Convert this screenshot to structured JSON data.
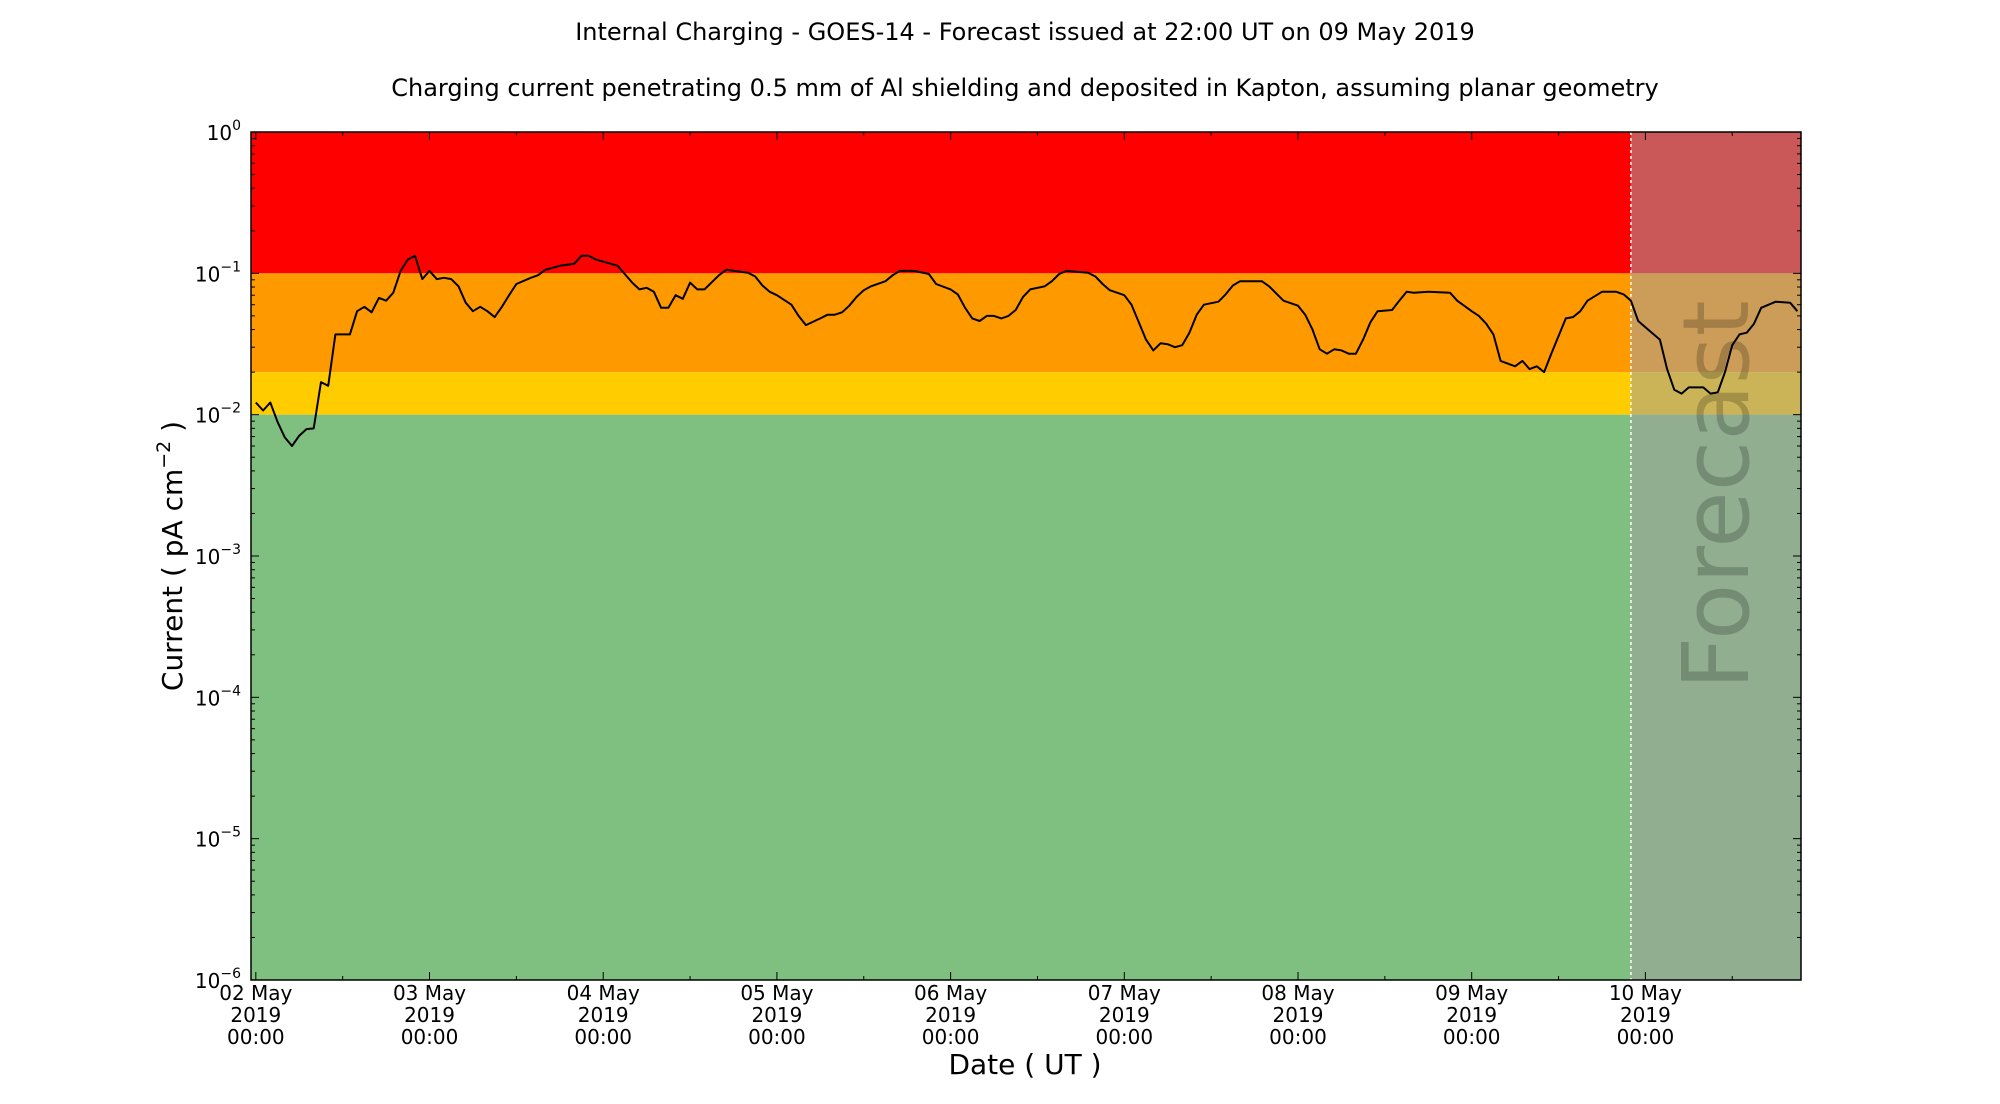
{
  "chart_data": {
    "type": "line",
    "title": "Internal Charging - GOES-14 - Forecast issued at 22:00 UT on 09 May 2019",
    "subtitle": "Charging current penetrating 0.5 mm of Al shielding and deposited in Kapton, assuming planar geometry",
    "xlabel": "Date ( UT )",
    "ylabel": {
      "text": "Current ( pA cm",
      "exp": "−2",
      "close": " )"
    },
    "y_scale": "log",
    "ylim": [
      1e-06,
      1
    ],
    "xlim": [
      "2019-05-01T23:20",
      "2019-05-10T21:30"
    ],
    "grid": false,
    "y_ticks": [
      {
        "value": 1,
        "base": "10",
        "exp": "0"
      },
      {
        "value": 0.1,
        "base": "10",
        "exp": "−1"
      },
      {
        "value": 0.01,
        "base": "10",
        "exp": "−2"
      },
      {
        "value": 0.001,
        "base": "10",
        "exp": "−3"
      },
      {
        "value": 0.0001,
        "base": "10",
        "exp": "−4"
      },
      {
        "value": 1e-05,
        "base": "10",
        "exp": "−5"
      },
      {
        "value": 1e-06,
        "base": "10",
        "exp": "−6"
      }
    ],
    "x_ticks": [
      {
        "date": "2019-05-02T00:00",
        "lines": [
          "02 May",
          "2019",
          "00:00"
        ]
      },
      {
        "date": "2019-05-03T00:00",
        "lines": [
          "03 May",
          "2019",
          "00:00"
        ]
      },
      {
        "date": "2019-05-04T00:00",
        "lines": [
          "04 May",
          "2019",
          "00:00"
        ]
      },
      {
        "date": "2019-05-05T00:00",
        "lines": [
          "05 May",
          "2019",
          "00:00"
        ]
      },
      {
        "date": "2019-05-06T00:00",
        "lines": [
          "06 May",
          "2019",
          "00:00"
        ]
      },
      {
        "date": "2019-05-07T00:00",
        "lines": [
          "07 May",
          "2019",
          "00:00"
        ]
      },
      {
        "date": "2019-05-08T00:00",
        "lines": [
          "08 May",
          "2019",
          "00:00"
        ]
      },
      {
        "date": "2019-05-09T00:00",
        "lines": [
          "09 May",
          "2019",
          "00:00"
        ]
      },
      {
        "date": "2019-05-10T00:00",
        "lines": [
          "10 May",
          "2019",
          "00:00"
        ]
      }
    ],
    "bands": [
      {
        "from": 0.1,
        "to": 1,
        "color": "#ff0000"
      },
      {
        "from": 0.02,
        "to": 0.1,
        "color": "#ff9900"
      },
      {
        "from": 0.01,
        "to": 0.02,
        "color": "#ffcc00"
      },
      {
        "from": 1e-06,
        "to": 0.01,
        "color": "#7fbf7f"
      }
    ],
    "forecast": {
      "start": "2019-05-09T22:00",
      "label": "Forecast",
      "shade_color": "#a0a0a0"
    },
    "line_color": "#000000",
    "series": [
      {
        "points": [
          [
            "2019-05-02T00:00",
            0.0122
          ],
          [
            "2019-05-02T01:00",
            0.0107
          ],
          [
            "2019-05-02T02:00",
            0.0122
          ],
          [
            "2019-05-02T03:00",
            0.0089
          ],
          [
            "2019-05-02T04:00",
            0.0069
          ],
          [
            "2019-05-02T05:00",
            0.006
          ],
          [
            "2019-05-02T06:00",
            0.0071
          ],
          [
            "2019-05-02T07:00",
            0.0079
          ],
          [
            "2019-05-02T08:00",
            0.008
          ],
          [
            "2019-05-02T09:00",
            0.017
          ],
          [
            "2019-05-02T10:00",
            0.016
          ],
          [
            "2019-05-02T11:00",
            0.037
          ],
          [
            "2019-05-02T13:00",
            0.037
          ],
          [
            "2019-05-02T14:00",
            0.054
          ],
          [
            "2019-05-02T15:00",
            0.058
          ],
          [
            "2019-05-02T16:00",
            0.053
          ],
          [
            "2019-05-02T17:00",
            0.067
          ],
          [
            "2019-05-02T18:00",
            0.064
          ],
          [
            "2019-05-02T19:00",
            0.073
          ],
          [
            "2019-05-02T20:00",
            0.104
          ],
          [
            "2019-05-02T21:00",
            0.125
          ],
          [
            "2019-05-02T22:00",
            0.133
          ],
          [
            "2019-05-02T23:00",
            0.091
          ],
          [
            "2019-05-03T00:00",
            0.104
          ],
          [
            "2019-05-03T01:00",
            0.091
          ],
          [
            "2019-05-03T02:00",
            0.093
          ],
          [
            "2019-05-03T03:00",
            0.091
          ],
          [
            "2019-05-03T04:00",
            0.081
          ],
          [
            "2019-05-03T05:00",
            0.062
          ],
          [
            "2019-05-03T06:00",
            0.054
          ],
          [
            "2019-05-03T07:00",
            0.058
          ],
          [
            "2019-05-03T08:00",
            0.054
          ],
          [
            "2019-05-03T09:00",
            0.049
          ],
          [
            "2019-05-03T10:00",
            0.058
          ],
          [
            "2019-05-03T11:00",
            0.07
          ],
          [
            "2019-05-03T12:00",
            0.084
          ],
          [
            "2019-05-03T14:00",
            0.093
          ],
          [
            "2019-05-03T15:00",
            0.097
          ],
          [
            "2019-05-03T16:00",
            0.106
          ],
          [
            "2019-05-03T18:00",
            0.113
          ],
          [
            "2019-05-03T19:00",
            0.115
          ],
          [
            "2019-05-03T20:00",
            0.117
          ],
          [
            "2019-05-03T21:00",
            0.133
          ],
          [
            "2019-05-03T22:00",
            0.133
          ],
          [
            "2019-05-03T23:00",
            0.125
          ],
          [
            "2019-05-04T01:00",
            0.117
          ],
          [
            "2019-05-04T02:00",
            0.113
          ],
          [
            "2019-05-04T04:00",
            0.086
          ],
          [
            "2019-05-04T05:00",
            0.077
          ],
          [
            "2019-05-04T06:00",
            0.079
          ],
          [
            "2019-05-04T07:00",
            0.074
          ],
          [
            "2019-05-04T08:00",
            0.057
          ],
          [
            "2019-05-04T09:00",
            0.057
          ],
          [
            "2019-05-04T10:00",
            0.07
          ],
          [
            "2019-05-04T11:00",
            0.066
          ],
          [
            "2019-05-04T12:00",
            0.086
          ],
          [
            "2019-05-04T13:00",
            0.077
          ],
          [
            "2019-05-04T14:00",
            0.077
          ],
          [
            "2019-05-04T16:00",
            0.097
          ],
          [
            "2019-05-04T17:00",
            0.106
          ],
          [
            "2019-05-04T20:00",
            0.101
          ],
          [
            "2019-05-04T21:00",
            0.095
          ],
          [
            "2019-05-04T22:00",
            0.082
          ],
          [
            "2019-05-04T23:00",
            0.074
          ],
          [
            "2019-05-05T00:00",
            0.07
          ],
          [
            "2019-05-05T02:00",
            0.06
          ],
          [
            "2019-05-05T03:00",
            0.05
          ],
          [
            "2019-05-05T04:00",
            0.043
          ],
          [
            "2019-05-05T06:00",
            0.048
          ],
          [
            "2019-05-05T07:00",
            0.051
          ],
          [
            "2019-05-05T08:00",
            0.051
          ],
          [
            "2019-05-05T09:00",
            0.053
          ],
          [
            "2019-05-05T10:00",
            0.059
          ],
          [
            "2019-05-05T11:00",
            0.068
          ],
          [
            "2019-05-05T12:00",
            0.076
          ],
          [
            "2019-05-05T13:00",
            0.081
          ],
          [
            "2019-05-05T15:00",
            0.088
          ],
          [
            "2019-05-05T16:00",
            0.097
          ],
          [
            "2019-05-05T17:00",
            0.104
          ],
          [
            "2019-05-05T19:00",
            0.104
          ],
          [
            "2019-05-05T21:00",
            0.099
          ],
          [
            "2019-05-05T22:00",
            0.084
          ],
          [
            "2019-05-06T00:00",
            0.077
          ],
          [
            "2019-05-06T01:00",
            0.071
          ],
          [
            "2019-05-06T02:00",
            0.057
          ],
          [
            "2019-05-06T03:00",
            0.048
          ],
          [
            "2019-05-06T04:00",
            0.046
          ],
          [
            "2019-05-06T05:00",
            0.05
          ],
          [
            "2019-05-06T06:00",
            0.05
          ],
          [
            "2019-05-06T07:00",
            0.048
          ],
          [
            "2019-05-06T08:00",
            0.05
          ],
          [
            "2019-05-06T09:00",
            0.055
          ],
          [
            "2019-05-06T10:00",
            0.068
          ],
          [
            "2019-05-06T11:00",
            0.077
          ],
          [
            "2019-05-06T13:00",
            0.081
          ],
          [
            "2019-05-06T14:00",
            0.088
          ],
          [
            "2019-05-06T15:00",
            0.099
          ],
          [
            "2019-05-06T16:00",
            0.104
          ],
          [
            "2019-05-06T19:00",
            0.101
          ],
          [
            "2019-05-06T20:00",
            0.095
          ],
          [
            "2019-05-06T21:00",
            0.084
          ],
          [
            "2019-05-06T22:00",
            0.076
          ],
          [
            "2019-05-07T00:00",
            0.07
          ],
          [
            "2019-05-07T01:00",
            0.06
          ],
          [
            "2019-05-07T02:00",
            0.045
          ],
          [
            "2019-05-07T03:00",
            0.034
          ],
          [
            "2019-05-07T04:00",
            0.0285
          ],
          [
            "2019-05-07T05:00",
            0.032
          ],
          [
            "2019-05-07T06:00",
            0.0315
          ],
          [
            "2019-05-07T07:00",
            0.03
          ],
          [
            "2019-05-07T08:00",
            0.031
          ],
          [
            "2019-05-07T09:00",
            0.038
          ],
          [
            "2019-05-07T10:00",
            0.051
          ],
          [
            "2019-05-07T11:00",
            0.06
          ],
          [
            "2019-05-07T13:00",
            0.063
          ],
          [
            "2019-05-07T14:00",
            0.071
          ],
          [
            "2019-05-07T15:00",
            0.082
          ],
          [
            "2019-05-07T16:00",
            0.088
          ],
          [
            "2019-05-07T19:00",
            0.088
          ],
          [
            "2019-05-07T20:00",
            0.081
          ],
          [
            "2019-05-07T22:00",
            0.064
          ],
          [
            "2019-05-08T00:00",
            0.059
          ],
          [
            "2019-05-08T01:00",
            0.051
          ],
          [
            "2019-05-08T02:00",
            0.04
          ],
          [
            "2019-05-08T03:00",
            0.029
          ],
          [
            "2019-05-08T04:00",
            0.027
          ],
          [
            "2019-05-08T05:00",
            0.029
          ],
          [
            "2019-05-08T06:00",
            0.0285
          ],
          [
            "2019-05-08T07:00",
            0.027
          ],
          [
            "2019-05-08T08:00",
            0.027
          ],
          [
            "2019-05-08T09:00",
            0.034
          ],
          [
            "2019-05-08T10:00",
            0.045
          ],
          [
            "2019-05-08T11:00",
            0.054
          ],
          [
            "2019-05-08T13:00",
            0.055
          ],
          [
            "2019-05-08T14:00",
            0.064
          ],
          [
            "2019-05-08T15:00",
            0.074
          ],
          [
            "2019-05-08T16:00",
            0.073
          ],
          [
            "2019-05-08T18:00",
            0.074
          ],
          [
            "2019-05-08T21:00",
            0.073
          ],
          [
            "2019-05-08T22:00",
            0.064
          ],
          [
            "2019-05-09T00:00",
            0.054
          ],
          [
            "2019-05-09T01:00",
            0.05
          ],
          [
            "2019-05-09T02:00",
            0.044
          ],
          [
            "2019-05-09T03:00",
            0.037
          ],
          [
            "2019-05-09T04:00",
            0.024
          ],
          [
            "2019-05-09T06:00",
            0.022
          ],
          [
            "2019-05-09T07:00",
            0.024
          ],
          [
            "2019-05-09T08:00",
            0.021
          ],
          [
            "2019-05-09T09:00",
            0.022
          ],
          [
            "2019-05-09T10:00",
            0.02
          ],
          [
            "2019-05-09T11:00",
            0.027
          ],
          [
            "2019-05-09T13:00",
            0.048
          ],
          [
            "2019-05-09T14:00",
            0.049
          ],
          [
            "2019-05-09T15:00",
            0.054
          ],
          [
            "2019-05-09T16:00",
            0.064
          ],
          [
            "2019-05-09T18:00",
            0.074
          ],
          [
            "2019-05-09T20:00",
            0.074
          ],
          [
            "2019-05-09T21:00",
            0.071
          ],
          [
            "2019-05-09T22:00",
            0.064
          ],
          [
            "2019-05-09T23:00",
            0.046
          ],
          [
            "2019-05-10T00:00",
            0.0415
          ],
          [
            "2019-05-10T02:00",
            0.034
          ],
          [
            "2019-05-10T03:00",
            0.021
          ],
          [
            "2019-05-10T04:00",
            0.015
          ],
          [
            "2019-05-10T05:00",
            0.0141
          ],
          [
            "2019-05-10T06:00",
            0.0156
          ],
          [
            "2019-05-10T08:00",
            0.0156
          ],
          [
            "2019-05-10T09:00",
            0.0141
          ],
          [
            "2019-05-10T10:00",
            0.0144
          ],
          [
            "2019-05-10T11:00",
            0.02
          ],
          [
            "2019-05-10T12:00",
            0.031
          ],
          [
            "2019-05-10T13:00",
            0.037
          ],
          [
            "2019-05-10T14:00",
            0.038
          ],
          [
            "2019-05-10T15:00",
            0.044
          ],
          [
            "2019-05-10T16:00",
            0.057
          ],
          [
            "2019-05-10T18:00",
            0.063
          ],
          [
            "2019-05-10T20:00",
            0.062
          ],
          [
            "2019-05-10T21:00",
            0.054
          ]
        ]
      }
    ]
  }
}
